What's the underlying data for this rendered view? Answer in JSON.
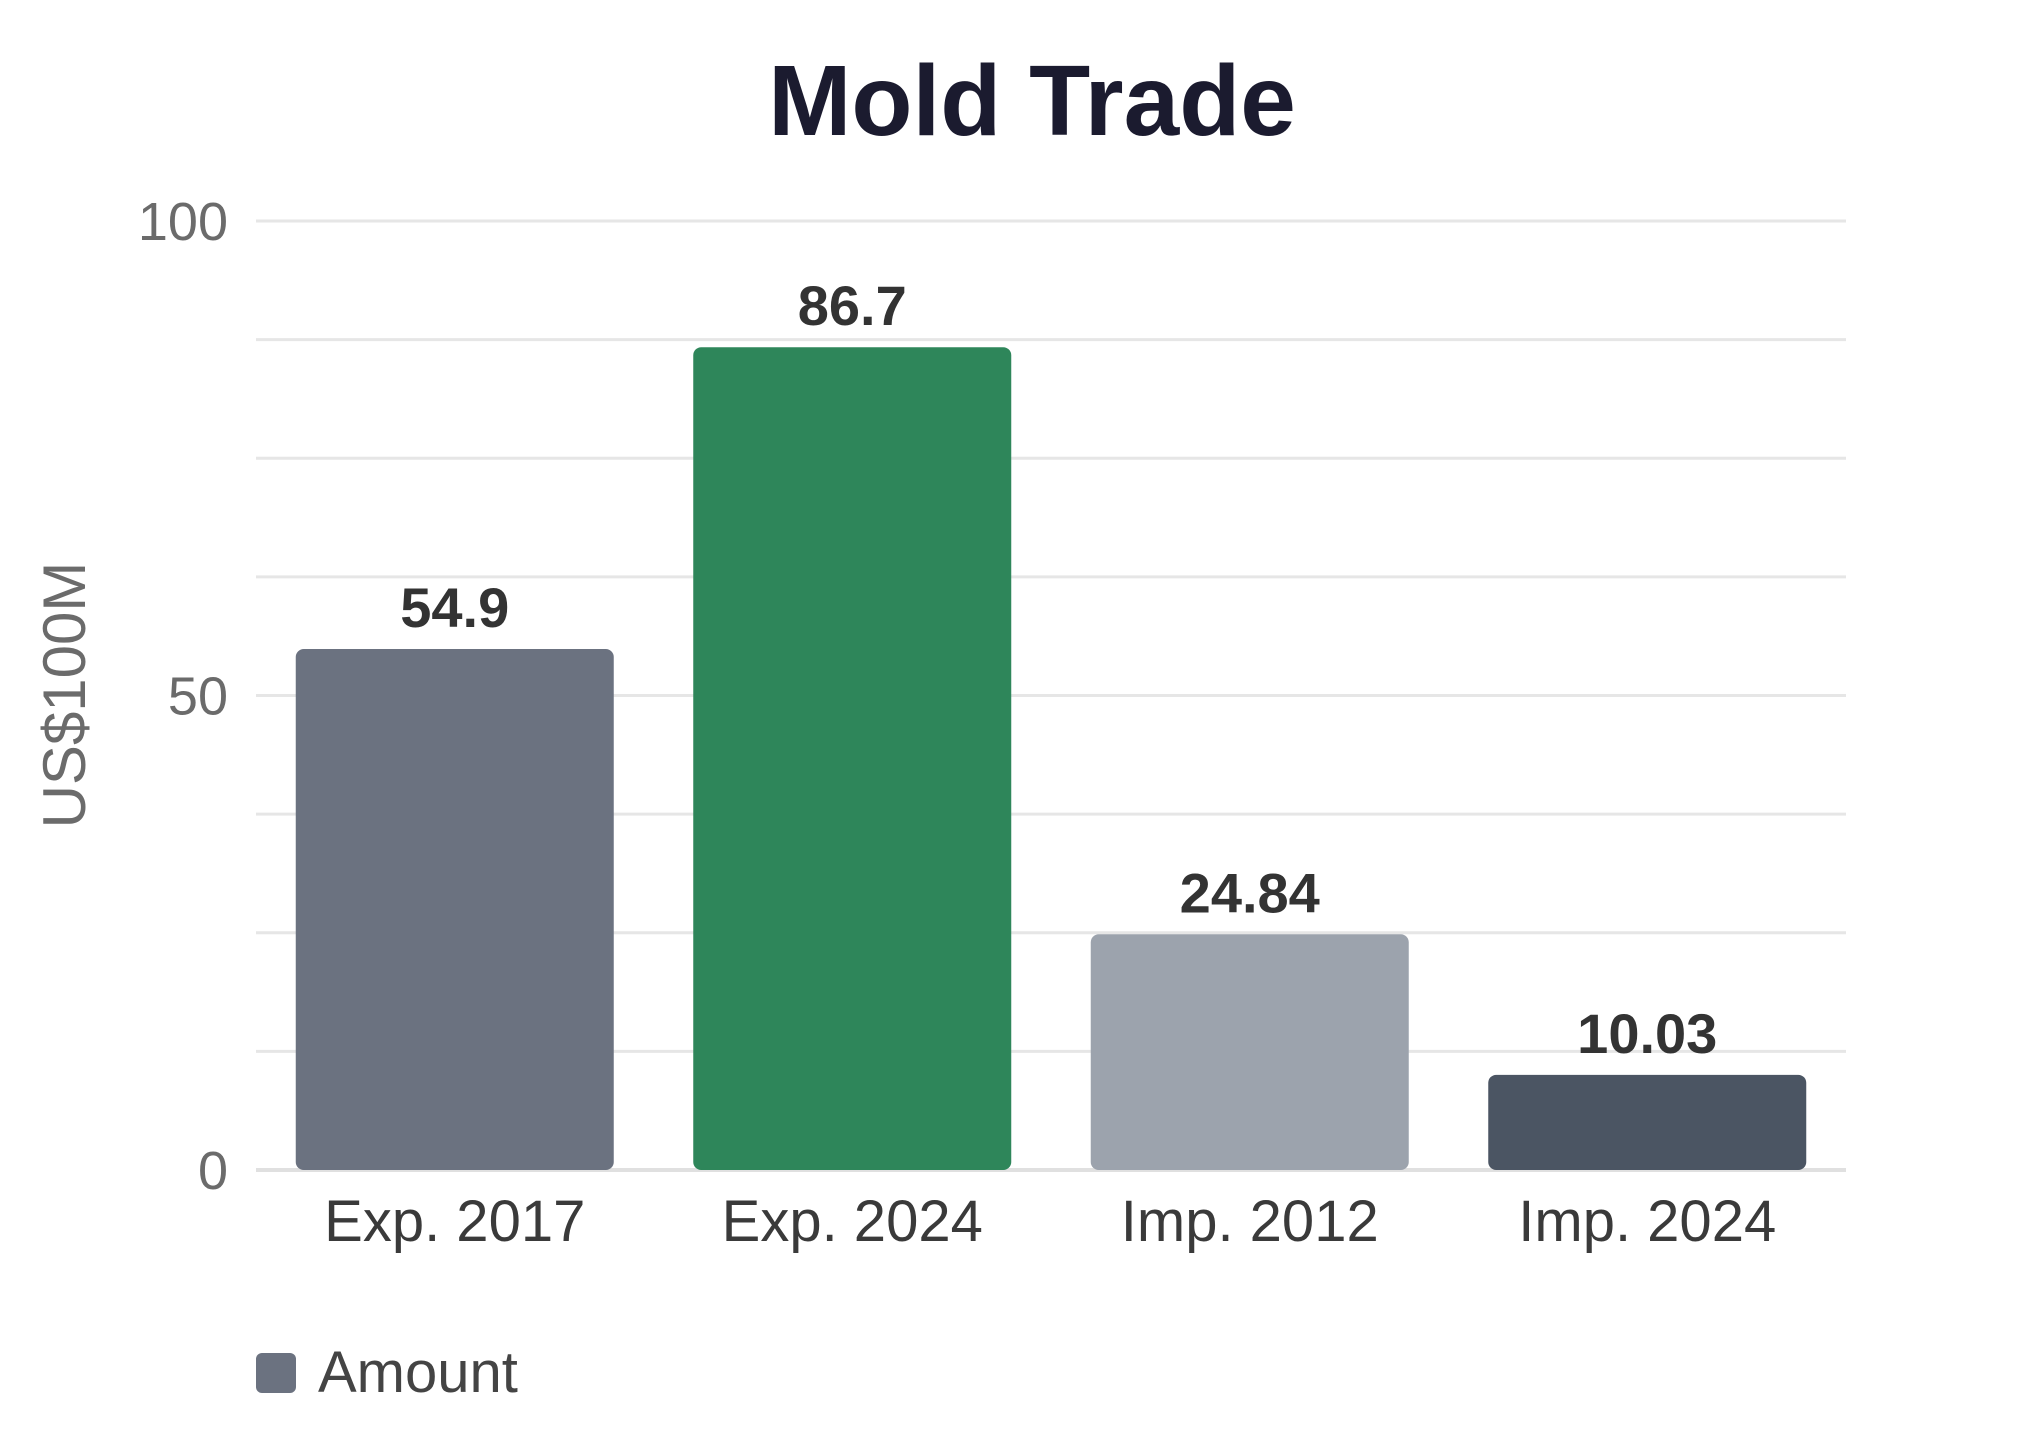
{
  "chart_data": {
    "type": "bar",
    "title": "Mold Trade",
    "xlabel": "",
    "ylabel": "US$100M",
    "categories": [
      "Exp. 2017",
      "Exp. 2024",
      "Imp. 2012",
      "Imp. 2024"
    ],
    "series": [
      {
        "name": "Amount",
        "values": [
          54.9,
          86.7,
          24.84,
          10.03
        ],
        "value_labels": [
          "54.9",
          "86.7",
          "24.84",
          "10.03"
        ]
      }
    ],
    "bar_colors": [
      "#6b7280",
      "#2e865a",
      "#9ca3ad",
      "#4b5563"
    ],
    "ylim": [
      0,
      100
    ],
    "yticks": [
      "0",
      "50",
      "100"
    ],
    "grid": true,
    "legend": {
      "position": "bottom-left",
      "color": "#6b7280"
    }
  }
}
